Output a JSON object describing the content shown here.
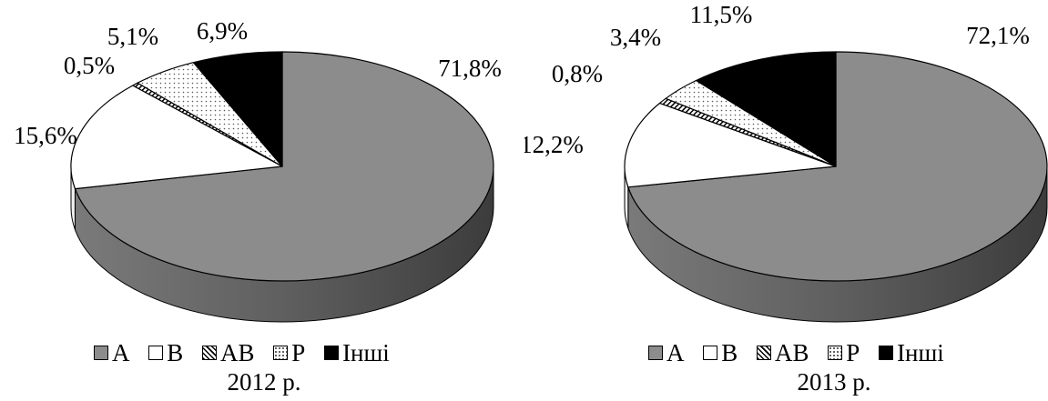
{
  "colors": {
    "A": "#8c8c8c",
    "B": "#ffffff",
    "AB": "#cfcfcf",
    "P": "#f2f2f2",
    "Other": "#000000"
  },
  "chart_data": [
    {
      "type": "pie",
      "caption": "2012 р.",
      "categories": [
        "A",
        "B",
        "AB",
        "P",
        "Інші"
      ],
      "values": [
        71.8,
        15.6,
        0.5,
        5.1,
        6.9
      ],
      "labels": [
        "71,8%",
        "15,6%",
        "0,5%",
        "5,1%",
        "6,9%"
      ],
      "legend": [
        "A",
        "B",
        "AB",
        "P",
        "Інші"
      ],
      "legend_position": "bottom"
    },
    {
      "type": "pie",
      "caption": "2013 р.",
      "categories": [
        "A",
        "B",
        "AB",
        "P",
        "Інші"
      ],
      "values": [
        72.1,
        12.2,
        0.8,
        3.4,
        11.5
      ],
      "labels": [
        "72,1%",
        "12,2%",
        "0,8%",
        "3,4%",
        "11,5%"
      ],
      "legend": [
        "A",
        "B",
        "AB",
        "P",
        "Інші"
      ],
      "legend_position": "bottom"
    }
  ]
}
